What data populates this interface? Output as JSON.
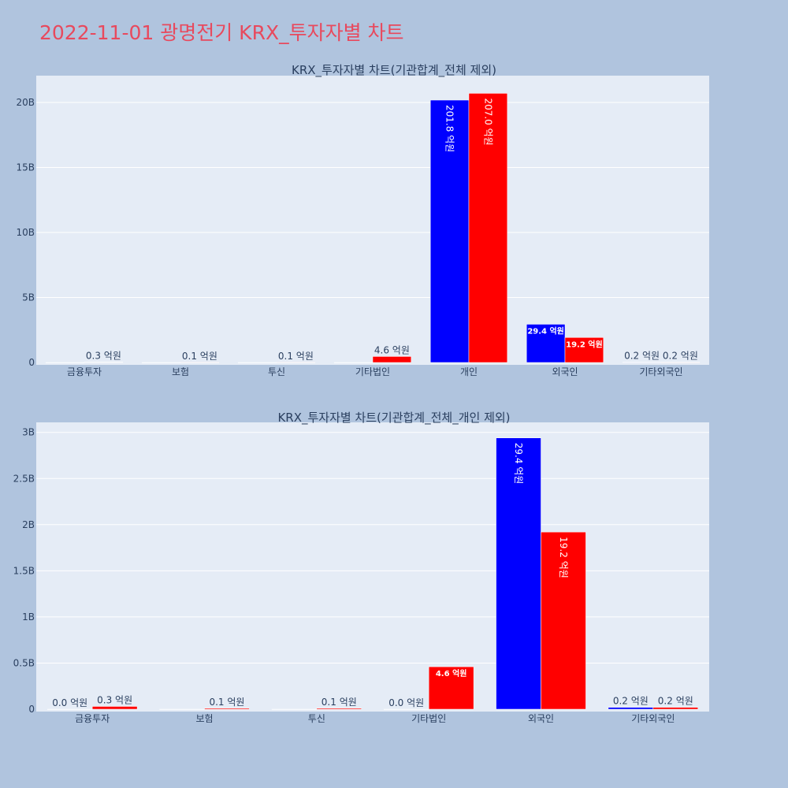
{
  "title": "2022-11-01 광명전기 KRX_투자자별 차트",
  "colors": {
    "series1": "#0000ff",
    "series2": "#ff0000",
    "plot_bg": "#e5ecf6",
    "page_bg": "#b0c4de",
    "title": "#e8495d"
  },
  "chart_data": [
    {
      "type": "bar",
      "title": "KRX_투자자별 차트(기관합계_전체 제외)",
      "categories": [
        "금융투자",
        "보험",
        "투신",
        "기타법인",
        "개인",
        "외국인",
        "기타외국인"
      ],
      "yticks": [
        "0",
        "5B",
        "10B",
        "15B",
        "20B"
      ],
      "ylim": [
        0,
        22000000000
      ],
      "series": [
        {
          "color": "#0000ff",
          "values": [
            0,
            0,
            0,
            0,
            20180000000,
            2940000000,
            20000000
          ],
          "labels": [
            "",
            "",
            "",
            "",
            "201.8 억원",
            "29.4 억원",
            "0.2 억원"
          ]
        },
        {
          "color": "#ff0000",
          "values": [
            30000000,
            10000000,
            10000000,
            460000000,
            20700000000,
            1920000000,
            20000000
          ],
          "labels": [
            "0.3 억원",
            "0.1 억원",
            "0.1 억원",
            "4.6 억원",
            "207.0 억원",
            "19.2 억원",
            "0.2 억원"
          ]
        }
      ]
    },
    {
      "type": "bar",
      "title": "KRX_투자자별 차트(기관합계_전체_개인 제외)",
      "categories": [
        "금융투자",
        "보험",
        "투신",
        "기타법인",
        "외국인",
        "기타외국인"
      ],
      "yticks": [
        "0",
        "0.5B",
        "1B",
        "1.5B",
        "2B",
        "2.5B",
        "3B"
      ],
      "ylim": [
        0,
        3100000000
      ],
      "series": [
        {
          "color": "#0000ff",
          "values": [
            0,
            0,
            0,
            0,
            2940000000,
            20000000
          ],
          "labels": [
            "0.0 억원",
            "",
            "",
            "0.0 억원",
            "29.4 억원",
            "0.2 억원"
          ]
        },
        {
          "color": "#ff0000",
          "values": [
            30000000,
            10000000,
            10000000,
            460000000,
            1920000000,
            20000000
          ],
          "labels": [
            "0.3 억원",
            "0.1 억원",
            "0.1 억원",
            "4.6 억원",
            "19.2 억원",
            "0.2 억원"
          ]
        }
      ]
    }
  ]
}
